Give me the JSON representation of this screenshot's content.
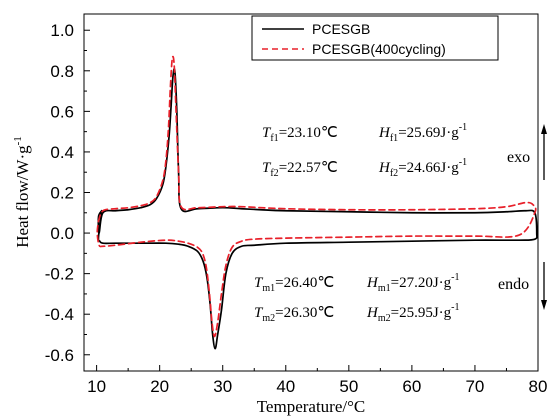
{
  "chart_data": {
    "type": "line",
    "xlabel": "Temperature/°C",
    "ylabel": "Heat flow/W·g",
    "ylabel_sup": "-1",
    "xlim": [
      8,
      80
    ],
    "ylim": [
      -0.68,
      1.08
    ],
    "x_ticks": [
      10,
      20,
      30,
      40,
      50,
      60,
      70,
      80
    ],
    "y_ticks": [
      -0.6,
      -0.4,
      -0.2,
      0.0,
      0.2,
      0.4,
      0.6,
      0.8,
      1.0
    ],
    "y_tick_labels": [
      "-0.6",
      "-0.4",
      "-0.2",
      "0.0",
      "0.2",
      "0.4",
      "0.6",
      "0.8",
      "1.0"
    ],
    "legend_position": "top-right",
    "series": [
      {
        "name": "PCESGB",
        "color": "#000000",
        "style": "solid",
        "x": [
          10.8,
          10.3,
          10.4,
          11.0,
          13,
          15,
          17,
          18.5,
          19.5,
          20.5,
          21.0,
          21.5,
          21.8,
          22.1,
          22.4,
          22.7,
          23.0,
          23.4,
          26,
          30,
          33,
          36,
          40,
          50,
          60,
          70,
          75,
          78,
          79.5,
          79.8,
          79.5,
          77,
          70,
          60,
          50,
          40,
          35,
          33,
          31.5,
          30.5,
          29.8,
          29.2,
          28.8,
          28.4,
          28.0,
          27.5,
          26.9,
          26.0,
          24.5,
          23,
          21,
          17,
          13,
          11,
          10.5,
          10.3,
          10.8
        ],
        "y": [
          0.11,
          0.08,
          0.0,
          0.1,
          0.11,
          0.115,
          0.125,
          0.14,
          0.17,
          0.24,
          0.33,
          0.48,
          0.62,
          0.77,
          0.8,
          0.62,
          0.3,
          0.12,
          0.12,
          0.125,
          0.12,
          0.115,
          0.11,
          0.105,
          0.1,
          0.1,
          0.105,
          0.11,
          0.1,
          0.0,
          -0.03,
          -0.035,
          -0.035,
          -0.04,
          -0.045,
          -0.05,
          -0.06,
          -0.065,
          -0.1,
          -0.2,
          -0.38,
          -0.5,
          -0.57,
          -0.5,
          -0.35,
          -0.22,
          -0.14,
          -0.09,
          -0.065,
          -0.055,
          -0.05,
          -0.05,
          -0.05,
          -0.05,
          -0.04,
          -0.02,
          0.11
        ]
      },
      {
        "name": "PCESGB(400cycling)",
        "color": "#e8202a",
        "style": "dashed",
        "x": [
          10.3,
          11.0,
          13,
          15,
          17,
          18.5,
          19.5,
          20.5,
          21.0,
          21.4,
          21.7,
          22.0,
          22.3,
          22.6,
          23.0,
          23.4,
          26,
          30,
          33,
          40,
          50,
          60,
          70,
          75,
          78,
          79.2,
          79.5,
          77,
          70,
          60,
          50,
          40,
          35,
          33,
          31.5,
          30.5,
          29.8,
          29.2,
          28.7,
          28.3,
          27.9,
          27.4,
          26.8,
          26.0,
          24.5,
          23,
          21,
          17,
          13,
          11,
          10.4,
          10.1,
          10.3
        ],
        "y": [
          0.06,
          0.11,
          0.12,
          0.125,
          0.135,
          0.15,
          0.18,
          0.26,
          0.36,
          0.52,
          0.72,
          0.86,
          0.83,
          0.6,
          0.3,
          0.13,
          0.125,
          0.13,
          0.13,
          0.12,
          0.115,
          0.115,
          0.12,
          0.13,
          0.15,
          0.14,
          0.1,
          -0.01,
          -0.015,
          -0.015,
          -0.02,
          -0.025,
          -0.03,
          -0.04,
          -0.07,
          -0.16,
          -0.3,
          -0.44,
          -0.51,
          -0.44,
          -0.3,
          -0.17,
          -0.1,
          -0.07,
          -0.05,
          -0.04,
          -0.035,
          -0.045,
          -0.06,
          -0.065,
          -0.06,
          0.0,
          0.06
        ]
      }
    ],
    "annotations": {
      "tf1": {
        "t_sym": "T",
        "t_sub": "f1",
        "t_val": "=23.10℃",
        "h_sym": "H",
        "h_sub": "f1",
        "h_val": "=25.69J·g",
        "h_sup": "-1"
      },
      "tf2": {
        "t_sym": "T",
        "t_sub": "f2",
        "t_val": "=22.57℃",
        "h_sym": "H",
        "h_sub": "f2",
        "h_val": "=24.66J·g",
        "h_sup": "-1"
      },
      "tm1": {
        "t_sym": "T",
        "t_sub": "m1",
        "t_val": "=26.40℃",
        "h_sym": "H",
        "h_sub": "m1",
        "h_val": "=27.20J·g",
        "h_sup": "-1"
      },
      "tm2": {
        "t_sym": "T",
        "t_sub": "m2",
        "t_val": "=26.30℃",
        "h_sym": "H",
        "h_sub": "m2",
        "h_val": "=25.95J·g",
        "h_sup": "-1"
      },
      "exo": "exo",
      "endo": "endo"
    }
  }
}
